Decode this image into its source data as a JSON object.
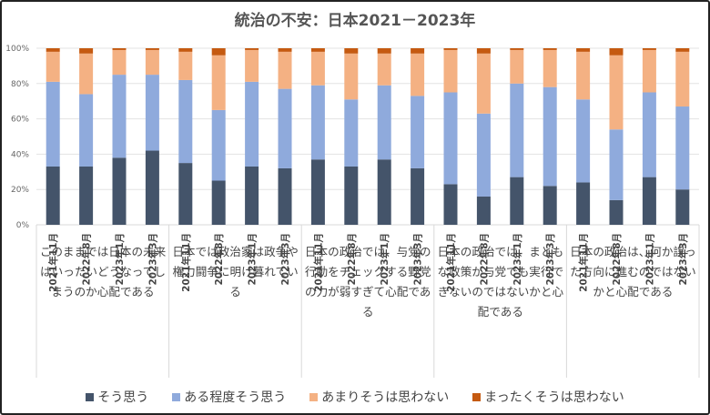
{
  "chart_data": {
    "type": "bar",
    "stacked": "percent",
    "title": "統治の不安：日本2021－2023年",
    "ylim": [
      0,
      100
    ],
    "yticks": [
      "0%",
      "20%",
      "40%",
      "60%",
      "80%",
      "100%"
    ],
    "grid": true,
    "legend_position": "bottom",
    "periods": [
      "2021年11月",
      "2022年8月",
      "2023年1月",
      "2023年3月"
    ],
    "groups": [
      "このままでは日本の未来はいったいどうなってしまうのか心配である",
      "日本では政治家は政争や権力闘争に明け暮れている",
      "日本の政治では、与党の行動をチェックする野党の力が弱すぎて心配である",
      "日本の政治では、まともな政策が与党でも実行できないのではないかと心配である",
      "日本の政治は、何か誤った方向に進むのではないかと心配である"
    ],
    "series": [
      {
        "name": "そう思う",
        "color": "#44546a",
        "values": [
          33,
          33,
          38,
          42,
          35,
          25,
          33,
          32,
          37,
          33,
          37,
          32,
          23,
          16,
          27,
          22,
          24,
          14,
          27,
          20
        ]
      },
      {
        "name": "ある程度そう思う",
        "color": "#8faadc",
        "values": [
          48,
          41,
          47,
          43,
          47,
          40,
          48,
          45,
          42,
          38,
          42,
          41,
          52,
          47,
          53,
          56,
          47,
          40,
          48,
          47
        ]
      },
      {
        "name": "あまりそうは思わない",
        "color": "#f4b183",
        "values": [
          17,
          23,
          14,
          14,
          16,
          31,
          18,
          21,
          19,
          26,
          18,
          24,
          24,
          34,
          19,
          21,
          27,
          42,
          24,
          31
        ]
      },
      {
        "name": "まったくそうは思わない",
        "color": "#c55a11",
        "values": [
          2,
          3,
          1,
          1,
          2,
          4,
          1,
          2,
          2,
          3,
          3,
          3,
          1,
          3,
          1,
          1,
          2,
          4,
          1,
          2
        ]
      }
    ]
  }
}
